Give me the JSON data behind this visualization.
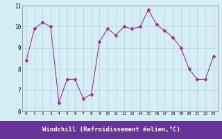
{
  "x": [
    0,
    1,
    2,
    3,
    4,
    5,
    6,
    7,
    8,
    9,
    10,
    11,
    12,
    13,
    14,
    15,
    16,
    17,
    18,
    19,
    20,
    21,
    22,
    23
  ],
  "y": [
    8.4,
    9.9,
    10.2,
    10.0,
    6.4,
    7.5,
    7.5,
    6.6,
    6.8,
    9.3,
    9.9,
    9.6,
    10.0,
    9.9,
    10.0,
    10.8,
    10.1,
    9.8,
    9.5,
    9.0,
    8.0,
    7.5,
    7.5,
    8.6
  ],
  "line_color": "#993399",
  "marker": "D",
  "marker_size": 2.5,
  "bg_color": "#d4eef4",
  "grid_color": "#b0d0d8",
  "xlabel": "Windchill (Refroidissement éolien,°C)",
  "xlabel_bg": "#663399",
  "xlabel_color": "#ffffff",
  "ylim": [
    6,
    11
  ],
  "yticks": [
    6,
    7,
    8,
    9,
    10,
    11
  ],
  "spine_color": "#888888"
}
